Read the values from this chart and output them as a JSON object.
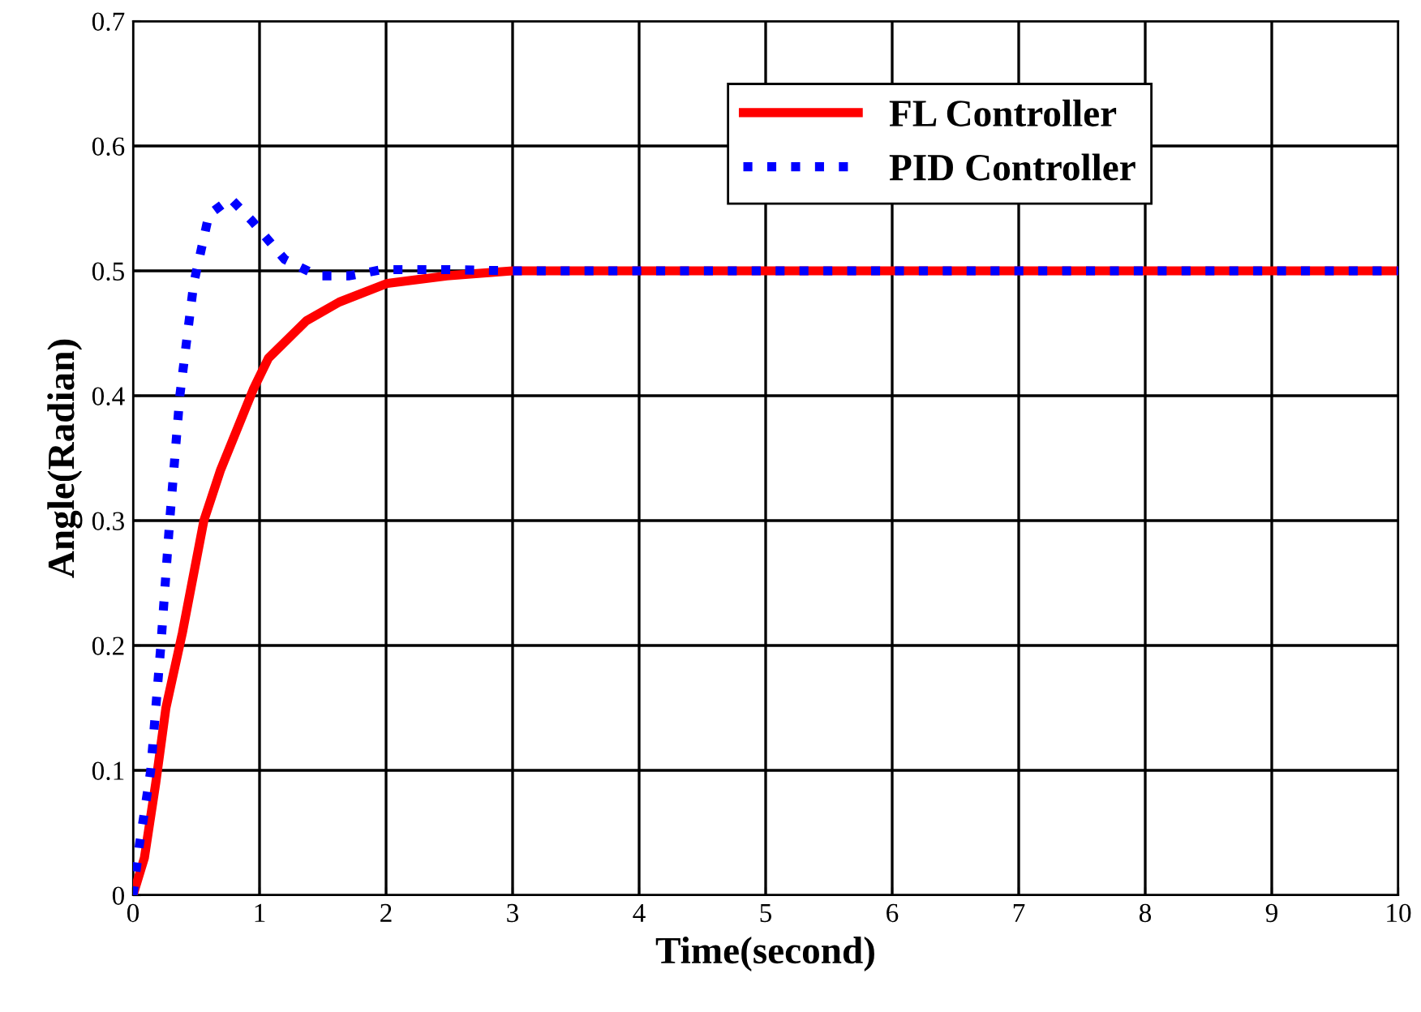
{
  "chart_data": {
    "type": "line",
    "xlabel": "Time(second)",
    "ylabel": "Angle(Radian)",
    "xlim": [
      0,
      10
    ],
    "ylim": [
      0,
      0.7
    ],
    "xticks": [
      0,
      1,
      2,
      3,
      4,
      5,
      6,
      7,
      8,
      9,
      10
    ],
    "yticks": [
      0,
      0.1,
      0.2,
      0.3,
      0.4,
      0.5,
      0.6,
      0.7
    ],
    "grid": true,
    "legend": "top right",
    "series": [
      {
        "name": "FL Controller",
        "color": "#ff0000",
        "line_style": "solid",
        "x": [
          0,
          0.09,
          0.18,
          0.26,
          0.39,
          0.56,
          0.69,
          0.95,
          1.07,
          1.37,
          1.63,
          2.01,
          2.48,
          3.0,
          10
        ],
        "values": [
          0,
          0.03,
          0.09,
          0.15,
          0.21,
          0.3,
          0.34,
          0.405,
          0.43,
          0.46,
          0.475,
          0.49,
          0.496,
          0.5,
          0.5
        ]
      },
      {
        "name": "PID Controller",
        "color": "#0000ff",
        "line_style": "dotted",
        "x": [
          0,
          0.05,
          0.14,
          0.22,
          0.29,
          0.37,
          0.48,
          0.6,
          0.77,
          0.94,
          1.2,
          1.46,
          1.71,
          1.97,
          2.48,
          3.0,
          10
        ],
        "values": [
          0,
          0.04,
          0.1,
          0.2,
          0.3,
          0.4,
          0.49,
          0.545,
          0.558,
          0.54,
          0.509,
          0.496,
          0.496,
          0.501,
          0.501,
          0.5,
          0.5
        ]
      }
    ]
  }
}
